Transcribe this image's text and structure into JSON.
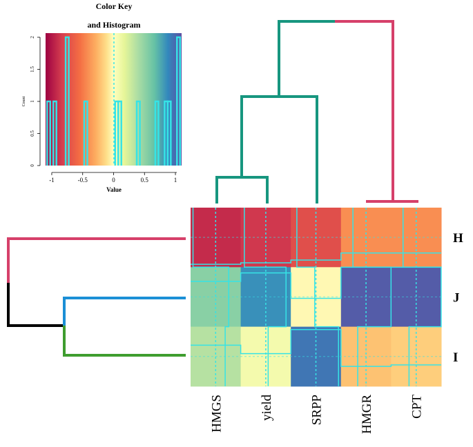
{
  "chart_data": {
    "type": "heatmap",
    "columns": [
      "HMGS",
      "yield",
      "SRPP",
      "HMGR",
      "CPT"
    ],
    "rows": [
      "H",
      "J",
      "I"
    ],
    "values": [
      [
        -0.95,
        -0.9,
        -0.8,
        -0.55,
        -0.55
      ],
      [
        0.55,
        0.85,
        -0.05,
        1.05,
        1.05
      ],
      [
        0.4,
        0.1,
        0.95,
        -0.35,
        -0.3
      ]
    ],
    "color_key": {
      "title_line1": "Color Key",
      "title_line2": "and Histogram",
      "xlabel": "Value",
      "ylabel": "Count",
      "x_ticks": [
        "-1",
        "-0.5",
        "0",
        "0.5",
        "1"
      ],
      "y_ticks": [
        "0",
        "0.5",
        "1",
        "1.5",
        "2"
      ],
      "xlim": [
        -1.1,
        1.1
      ],
      "ylim": [
        0,
        2
      ],
      "histogram_values": [
        -1.05,
        -0.95,
        -0.75,
        -0.75,
        -0.45,
        0.05,
        0.1,
        0.4,
        0.7,
        0.85,
        0.9,
        1.05,
        1.05
      ],
      "bin_width": 0.05
    },
    "column_dendrogram": {
      "merges": [
        {
          "left": "HMGS",
          "right": "yield",
          "height": 0.55
        },
        {
          "left": "HMGS+yield",
          "right": "SRPP",
          "height": 1.4
        },
        {
          "left": "HMGR",
          "right": "CPT",
          "height": 0.05
        },
        {
          "left": "HMGS+yield+SRPP",
          "right": "HMGR+CPT",
          "height": 2.6
        }
      ]
    },
    "row_dendrogram": {
      "merges": [
        {
          "left": "J",
          "right": "I",
          "height": 0.8
        },
        {
          "left": "H",
          "right": "J+I",
          "height": 2.0
        }
      ]
    },
    "colors": {
      "dendrogram_green": "#17967f",
      "dendrogram_red": "#d6406a",
      "row_dendro_blue": "#1b8fd6",
      "row_dendro_green": "#3f9d2f",
      "row_dendro_black": "#000000",
      "trace": "#36e3e6"
    }
  }
}
